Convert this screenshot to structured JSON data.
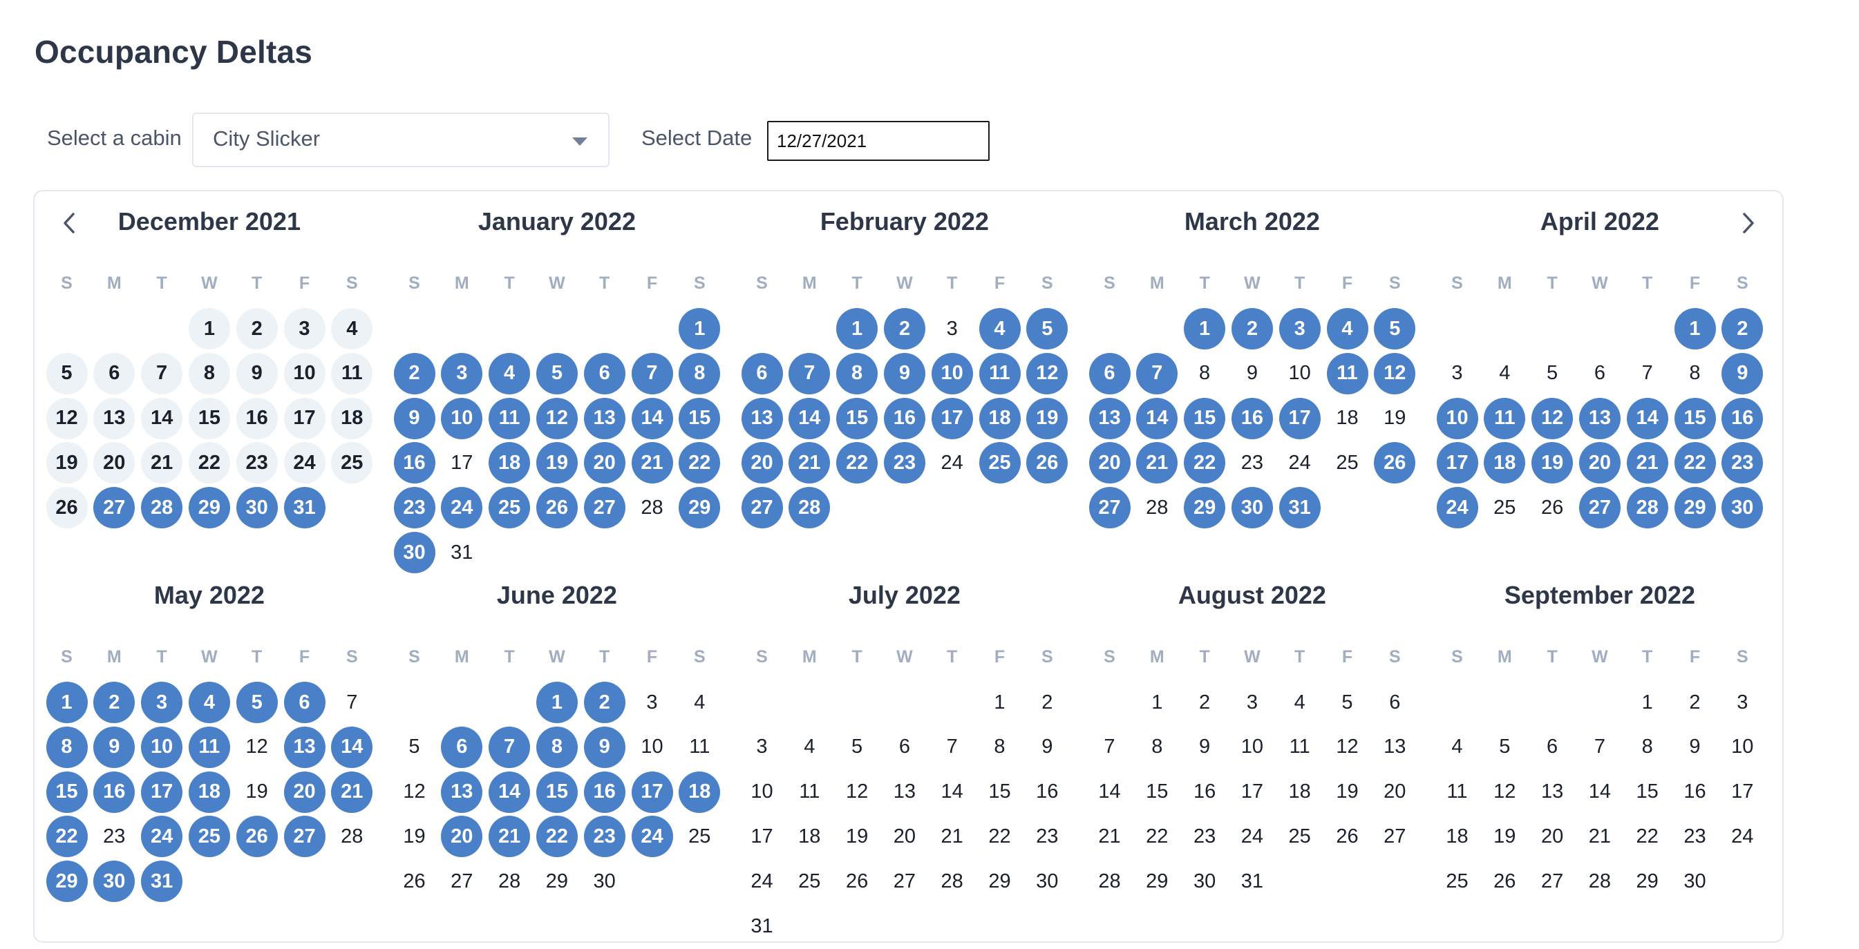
{
  "page": {
    "title": "Occupancy Deltas"
  },
  "controls": {
    "cabin_label": "Select a cabin",
    "cabin_value": "City Slicker",
    "date_label": "Select Date",
    "date_value": "12/27/2021"
  },
  "calendar": {
    "weekday_headers": [
      "S",
      "M",
      "T",
      "W",
      "T",
      "F",
      "S"
    ],
    "months": [
      {
        "title": "December 2021",
        "first_weekday": 3,
        "days": 31,
        "selected": [
          27,
          28,
          29,
          30,
          31
        ],
        "past_days": [
          1,
          2,
          3,
          4,
          5,
          6,
          7,
          8,
          9,
          10,
          11,
          12,
          13,
          14,
          15,
          16,
          17,
          18,
          19,
          20,
          21,
          22,
          23,
          24,
          25,
          26
        ]
      },
      {
        "title": "January 2022",
        "first_weekday": 6,
        "days": 31,
        "selected": [
          1,
          2,
          3,
          4,
          5,
          6,
          7,
          8,
          9,
          10,
          11,
          12,
          13,
          14,
          15,
          16,
          18,
          19,
          20,
          21,
          22,
          23,
          24,
          25,
          26,
          27,
          29,
          30
        ]
      },
      {
        "title": "February 2022",
        "first_weekday": 2,
        "days": 28,
        "selected": [
          1,
          2,
          4,
          5,
          6,
          7,
          8,
          9,
          10,
          11,
          12,
          13,
          14,
          15,
          16,
          17,
          18,
          19,
          20,
          21,
          22,
          23,
          25,
          26,
          27,
          28
        ]
      },
      {
        "title": "March 2022",
        "first_weekday": 2,
        "days": 31,
        "selected": [
          1,
          2,
          3,
          4,
          5,
          6,
          7,
          11,
          12,
          13,
          14,
          15,
          16,
          17,
          20,
          21,
          22,
          26,
          27,
          29,
          30,
          31
        ]
      },
      {
        "title": "April 2022",
        "first_weekday": 5,
        "days": 30,
        "selected": [
          1,
          2,
          9,
          10,
          11,
          12,
          13,
          14,
          15,
          16,
          17,
          18,
          19,
          20,
          21,
          22,
          23,
          24,
          27,
          28,
          29,
          30
        ]
      },
      {
        "title": "May 2022",
        "first_weekday": 0,
        "days": 31,
        "selected": [
          1,
          2,
          3,
          4,
          5,
          6,
          8,
          9,
          10,
          11,
          13,
          14,
          15,
          16,
          17,
          18,
          20,
          21,
          22,
          24,
          25,
          26,
          27,
          29,
          30,
          31
        ]
      },
      {
        "title": "June 2022",
        "first_weekday": 3,
        "days": 30,
        "selected": [
          1,
          2,
          6,
          7,
          8,
          9,
          13,
          14,
          15,
          16,
          17,
          18,
          20,
          21,
          22,
          23,
          24
        ]
      },
      {
        "title": "July 2022",
        "first_weekday": 5,
        "days": 31,
        "selected": []
      },
      {
        "title": "August 2022",
        "first_weekday": 1,
        "days": 31,
        "selected": []
      },
      {
        "title": "September 2022",
        "first_weekday": 4,
        "days": 30,
        "selected": []
      }
    ]
  },
  "icons": {
    "prev": "chevron-left-icon",
    "next": "chevron-right-icon",
    "dropdown": "caret-down-icon"
  },
  "colors": {
    "accent": "#4a80c8",
    "past_bg": "#edf2f7",
    "weekday_header": "#a0aec0"
  }
}
